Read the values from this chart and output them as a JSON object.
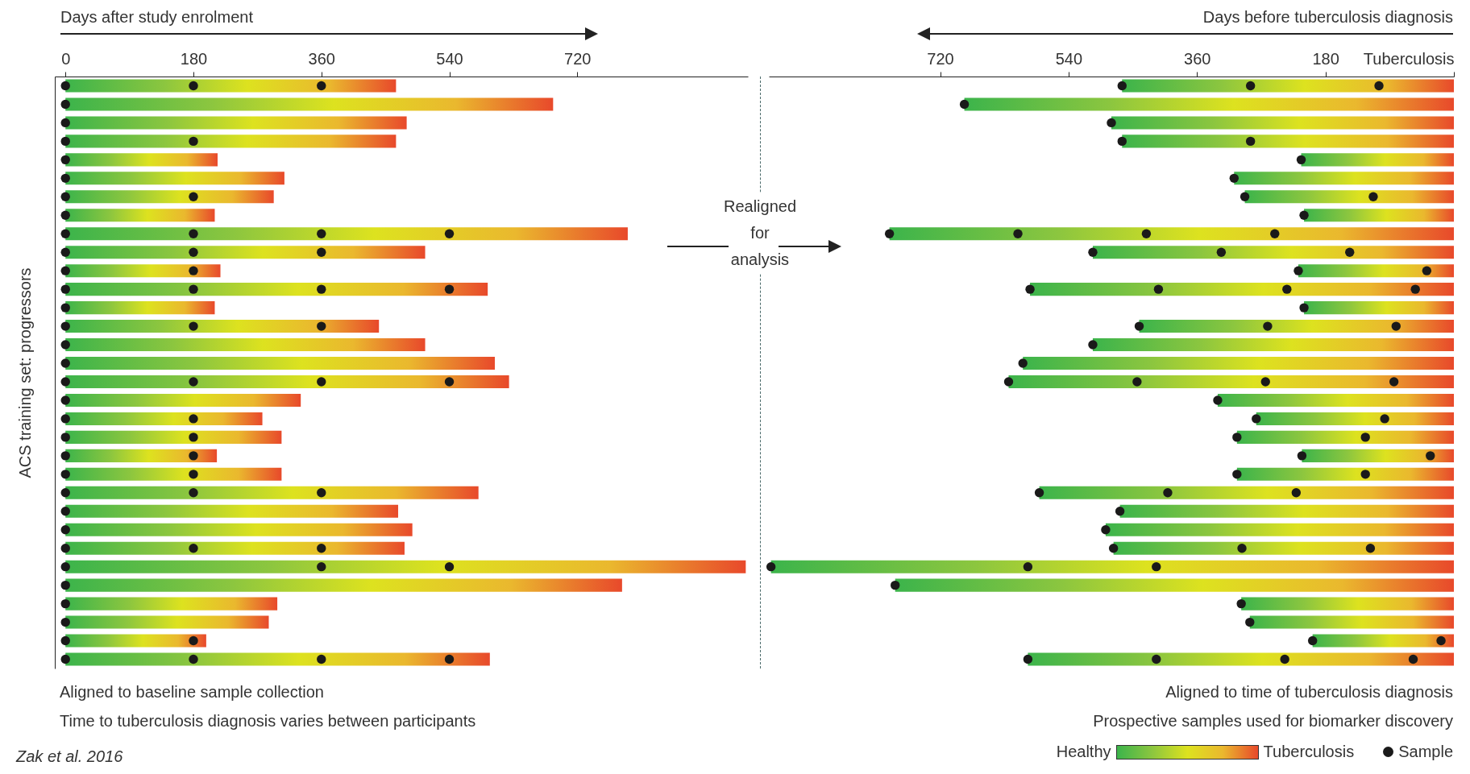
{
  "chart_data": [
    {
      "type": "bar",
      "orientation": "horizontal",
      "xlabel": "Days after study enrolment",
      "ylabel": "ACS training set: progressors",
      "xlim": [
        -15,
        960
      ],
      "xticks": [
        0,
        180,
        360,
        540,
        720
      ],
      "categories": [
        null,
        null,
        null,
        null,
        null,
        null,
        null,
        null,
        null,
        null,
        null,
        null,
        null,
        null,
        null,
        null,
        null,
        null,
        null,
        null,
        null,
        null,
        null,
        null,
        null,
        null,
        null,
        null,
        null,
        null,
        null,
        null
      ],
      "series": [
        {
          "color": "#3cb44b",
          "values": [
            465,
            686,
            480,
            465,
            214,
            308,
            293,
            210,
            791,
            506,
            218,
            594,
            210,
            441,
            506,
            604,
            624,
            331,
            277,
            304,
            213,
            304,
            581,
            468,
            488,
            477,
            957,
            783,
            298,
            286,
            198,
            597
          ]
        },
        {
          "type": "scatter",
          "color": "#1a1a1a",
          "values": [
            0,
            0,
            0,
            0,
            0,
            0,
            0,
            0,
            0,
            0,
            0,
            0,
            0,
            0,
            0,
            0,
            0,
            0,
            0,
            0,
            0,
            0,
            0,
            0,
            0,
            0,
            0,
            0,
            0,
            0,
            0,
            0
          ]
        },
        {
          "type": "scatter",
          "color": "#1a1a1a",
          "values": [
            180,
            null,
            null,
            180,
            null,
            null,
            180,
            null,
            180,
            180,
            180,
            180,
            null,
            180,
            null,
            null,
            180,
            null,
            180,
            180,
            180,
            180,
            180,
            null,
            null,
            180,
            360,
            null,
            null,
            null,
            180,
            180
          ]
        },
        {
          "type": "scatter",
          "color": "#1a1a1a",
          "values": [
            360,
            null,
            null,
            null,
            null,
            null,
            null,
            null,
            360,
            360,
            null,
            360,
            null,
            360,
            null,
            null,
            360,
            null,
            null,
            null,
            null,
            null,
            360,
            null,
            null,
            360,
            540,
            null,
            null,
            null,
            null,
            360
          ]
        },
        {
          "type": "scatter",
          "color": "#1a1a1a",
          "values": [
            null,
            null,
            null,
            null,
            null,
            null,
            null,
            null,
            540,
            null,
            null,
            540,
            null,
            null,
            null,
            null,
            540,
            null,
            null,
            null,
            null,
            null,
            null,
            null,
            null,
            null,
            null,
            null,
            null,
            null,
            null,
            540
          ]
        }
      ],
      "annotations": [
        "Aligned to baseline sample collection",
        "Time to tuberculosis diagnosis varies between participants",
        "Realigned for analysis",
        "Zak et al. 2016"
      ]
    },
    {
      "type": "bar",
      "orientation": "horizontal",
      "xlabel": "Days before tuberculosis diagnosis",
      "xlim": [
        960,
        0
      ],
      "xticks": [
        720,
        540,
        360,
        180,
        {
          "value": 0,
          "label": "Tuberculosis"
        }
      ],
      "legend": "bottom right",
      "categories": [
        null,
        null,
        null,
        null,
        null,
        null,
        null,
        null,
        null,
        null,
        null,
        null,
        null,
        null,
        null,
        null,
        null,
        null,
        null,
        null,
        null,
        null,
        null,
        null,
        null,
        null,
        null,
        null,
        null,
        null,
        null,
        null
      ],
      "series": [
        {
          "color": "#3cb44b",
          "values": [
            465,
            686,
            480,
            465,
            214,
            308,
            293,
            210,
            791,
            506,
            218,
            594,
            210,
            441,
            506,
            604,
            624,
            331,
            277,
            304,
            213,
            304,
            581,
            468,
            488,
            477,
            957,
            783,
            298,
            286,
            198,
            597
          ]
        },
        {
          "type": "scatter",
          "name": "Sample",
          "color": "#1a1a1a",
          "values": [
            465,
            686,
            480,
            465,
            214,
            308,
            293,
            210,
            791,
            506,
            218,
            594,
            210,
            441,
            506,
            604,
            624,
            331,
            277,
            304,
            213,
            304,
            581,
            468,
            488,
            477,
            957,
            783,
            298,
            286,
            198,
            597
          ]
        },
        {
          "type": "scatter",
          "color": "#1a1a1a",
          "values": [
            285,
            null,
            null,
            285,
            null,
            null,
            113,
            null,
            611,
            326,
            38,
            414,
            null,
            261,
            null,
            null,
            444,
            null,
            97,
            124,
            33,
            124,
            401,
            null,
            null,
            297,
            597,
            null,
            null,
            null,
            18,
            417
          ]
        },
        {
          "type": "scatter",
          "color": "#1a1a1a",
          "values": [
            105,
            null,
            null,
            null,
            null,
            null,
            null,
            null,
            431,
            146,
            null,
            234,
            null,
            81,
            null,
            null,
            264,
            null,
            null,
            null,
            null,
            null,
            221,
            null,
            null,
            117,
            417,
            null,
            null,
            null,
            null,
            237
          ]
        },
        {
          "type": "scatter",
          "color": "#1a1a1a",
          "values": [
            null,
            null,
            null,
            null,
            null,
            null,
            null,
            null,
            251,
            null,
            null,
            54,
            null,
            null,
            null,
            null,
            84,
            null,
            null,
            null,
            null,
            null,
            null,
            null,
            null,
            null,
            null,
            null,
            null,
            null,
            null,
            57
          ]
        }
      ],
      "annotations": [
        "Aligned to time of tuberculosis diagnosis",
        "Prospective samples used for biomarker discovery",
        "Healthy",
        "Tuberculosis"
      ]
    }
  ]
}
